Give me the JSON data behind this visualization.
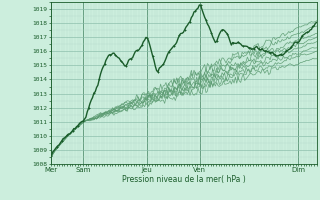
{
  "xlabel": "Pression niveau de la mer( hPa )",
  "ylim": [
    1008,
    1019.5
  ],
  "yticks": [
    1008,
    1009,
    1010,
    1011,
    1012,
    1013,
    1014,
    1015,
    1016,
    1017,
    1018,
    1019
  ],
  "xtick_labels": [
    "Mer",
    "Sam",
    "Jeu",
    "Ven",
    "Dim"
  ],
  "xtick_pos": [
    0,
    0.12,
    0.36,
    0.56,
    0.93
  ],
  "bg_color": "#cceedd",
  "grid_color_minor": "#b0d8c8",
  "grid_color_major": "#88bba8",
  "dark_green": "#1a5c2a",
  "mid_green": "#2e7a40",
  "light_green": "#5a9a70",
  "n_points": 200
}
